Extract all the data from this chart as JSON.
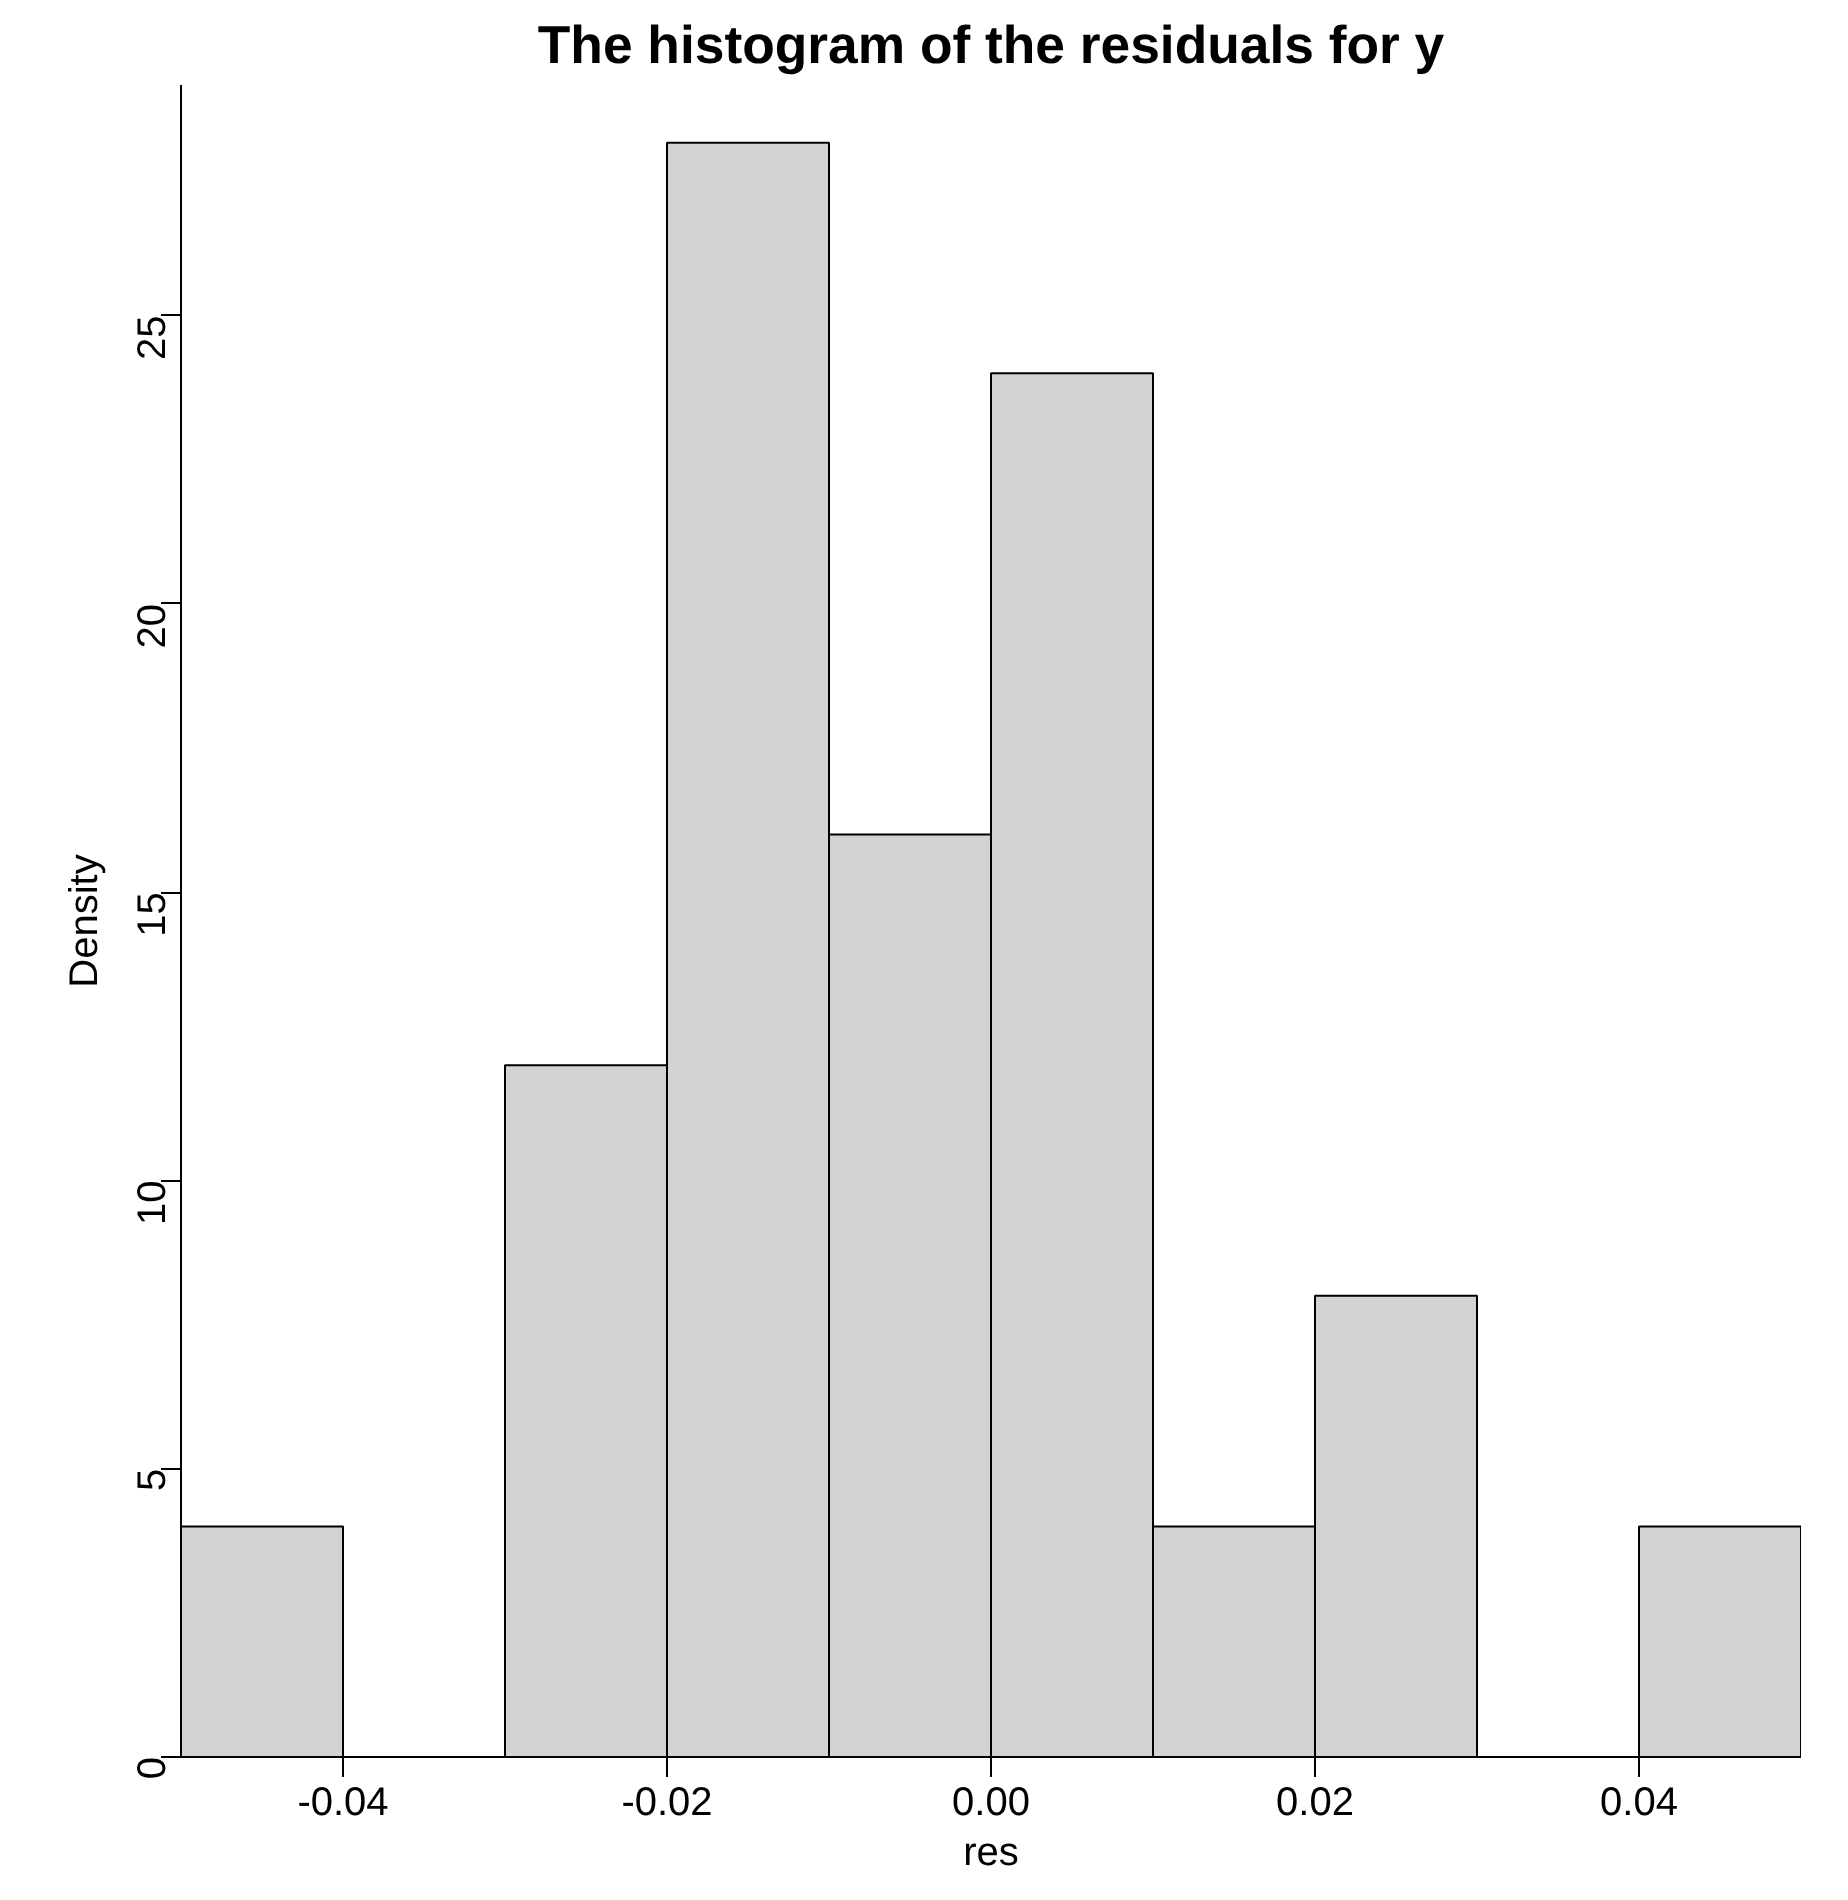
{
  "chart_data": {
    "type": "histogram",
    "title": "The histogram of the residuals for y",
    "xlabel": "res",
    "ylabel": "Density",
    "bins": [
      -0.05,
      -0.04,
      -0.03,
      -0.02,
      -0.01,
      0.0,
      0.01,
      0.02,
      0.03,
      0.04,
      0.05
    ],
    "values": [
      4,
      0,
      12,
      28,
      16,
      24,
      4,
      8,
      0,
      4
    ],
    "color": "#d3d3d3",
    "xlim": [
      -0.05,
      0.05
    ],
    "ylim": [
      0,
      29
    ],
    "xticks": [
      {
        "value": -0.04,
        "label": "-0.04"
      },
      {
        "value": -0.02,
        "label": "-0.02"
      },
      {
        "value": 0,
        "label": "0.00"
      },
      {
        "value": 0.02,
        "label": "0.02"
      },
      {
        "value": 0.04,
        "label": "0.04"
      }
    ],
    "yticks": [
      0,
      5,
      10,
      15,
      20,
      25
    ],
    "grid": false
  }
}
